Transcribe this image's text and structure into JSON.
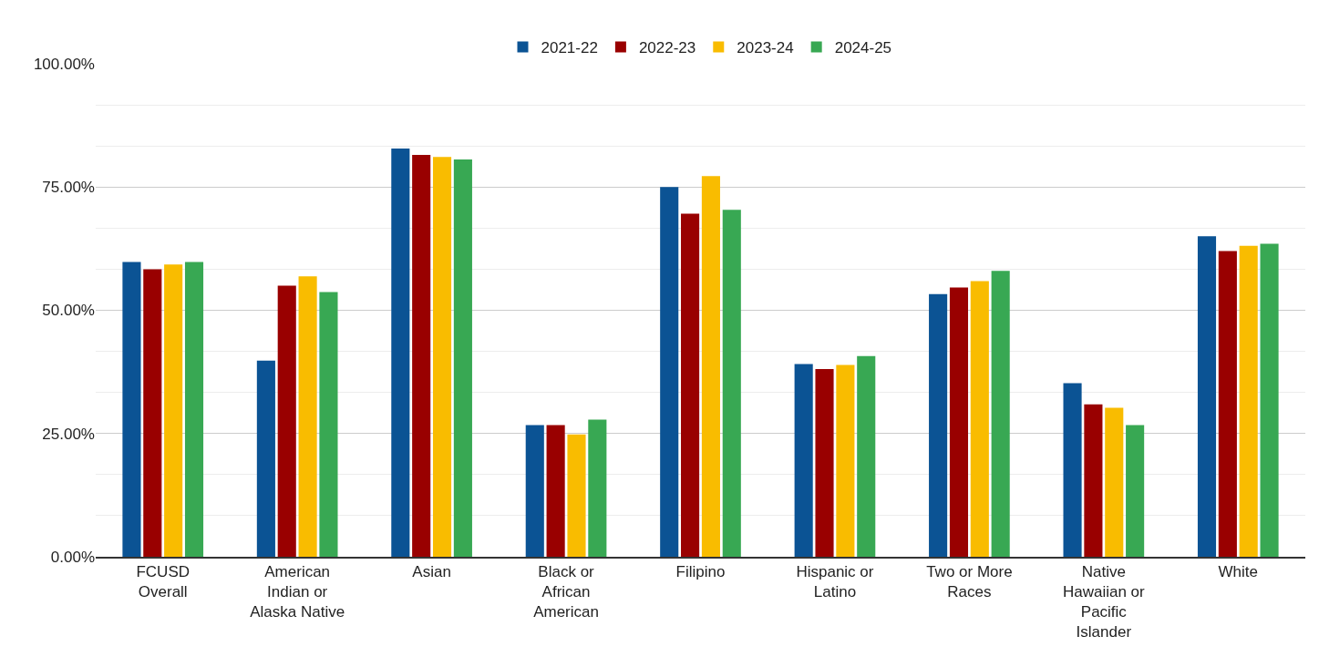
{
  "chart_data": {
    "type": "bar",
    "categories": [
      "FCUSD Overall",
      "American Indian or Alaska Native",
      "Asian",
      "Black or African American",
      "Filipino",
      "Hispanic or Latino",
      "Two or More Races",
      "Native Hawaiian or Pacific Islander",
      "White"
    ],
    "series": [
      {
        "name": "2021-22",
        "color": "#0b5394",
        "values": [
          59.8,
          39.8,
          82.8,
          26.7,
          75.0,
          39.1,
          53.3,
          35.2,
          65.0
        ]
      },
      {
        "name": "2022-23",
        "color": "#990000",
        "values": [
          58.3,
          55.0,
          81.5,
          26.7,
          69.6,
          38.1,
          54.6,
          30.9,
          62.0
        ]
      },
      {
        "name": "2023-24",
        "color": "#f9bc00",
        "values": [
          59.3,
          56.9,
          81.1,
          24.8,
          77.2,
          38.9,
          55.9,
          30.2,
          63.1
        ]
      },
      {
        "name": "2024-25",
        "color": "#38a853",
        "values": [
          59.8,
          53.7,
          80.6,
          27.8,
          70.4,
          40.7,
          58.0,
          26.7,
          63.5
        ]
      }
    ],
    "ylim": [
      0,
      100
    ],
    "yticks": [
      {
        "value": 0,
        "label": "0.00%"
      },
      {
        "value": 25,
        "label": "25.00%"
      },
      {
        "value": 50,
        "label": "50.00%"
      },
      {
        "value": 75,
        "label": "75.00%"
      },
      {
        "value": 100,
        "label": "100.00%"
      }
    ],
    "grid": "y",
    "legend": "top"
  }
}
